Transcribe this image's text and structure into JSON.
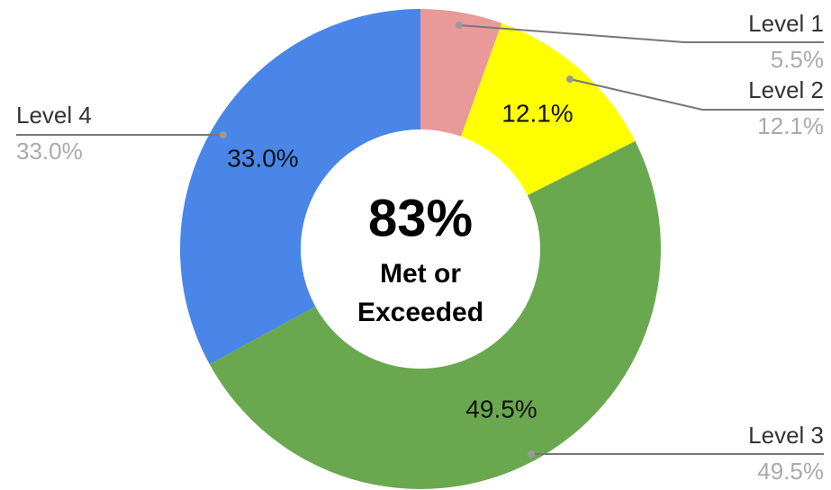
{
  "chart_data": {
    "type": "donut",
    "categories": [
      "Level 1",
      "Level 2",
      "Level 3",
      "Level 4"
    ],
    "values": [
      5.5,
      12.1,
      49.5,
      33.0
    ],
    "value_labels": [
      "5.5%",
      "12.1%",
      "49.5%",
      "33.0%"
    ],
    "colors": [
      "#ea9999",
      "#ffff00",
      "#6aa84f",
      "#4a86e8"
    ],
    "annotations": [
      "83%",
      "Met or",
      "Exceeded"
    ]
  }
}
